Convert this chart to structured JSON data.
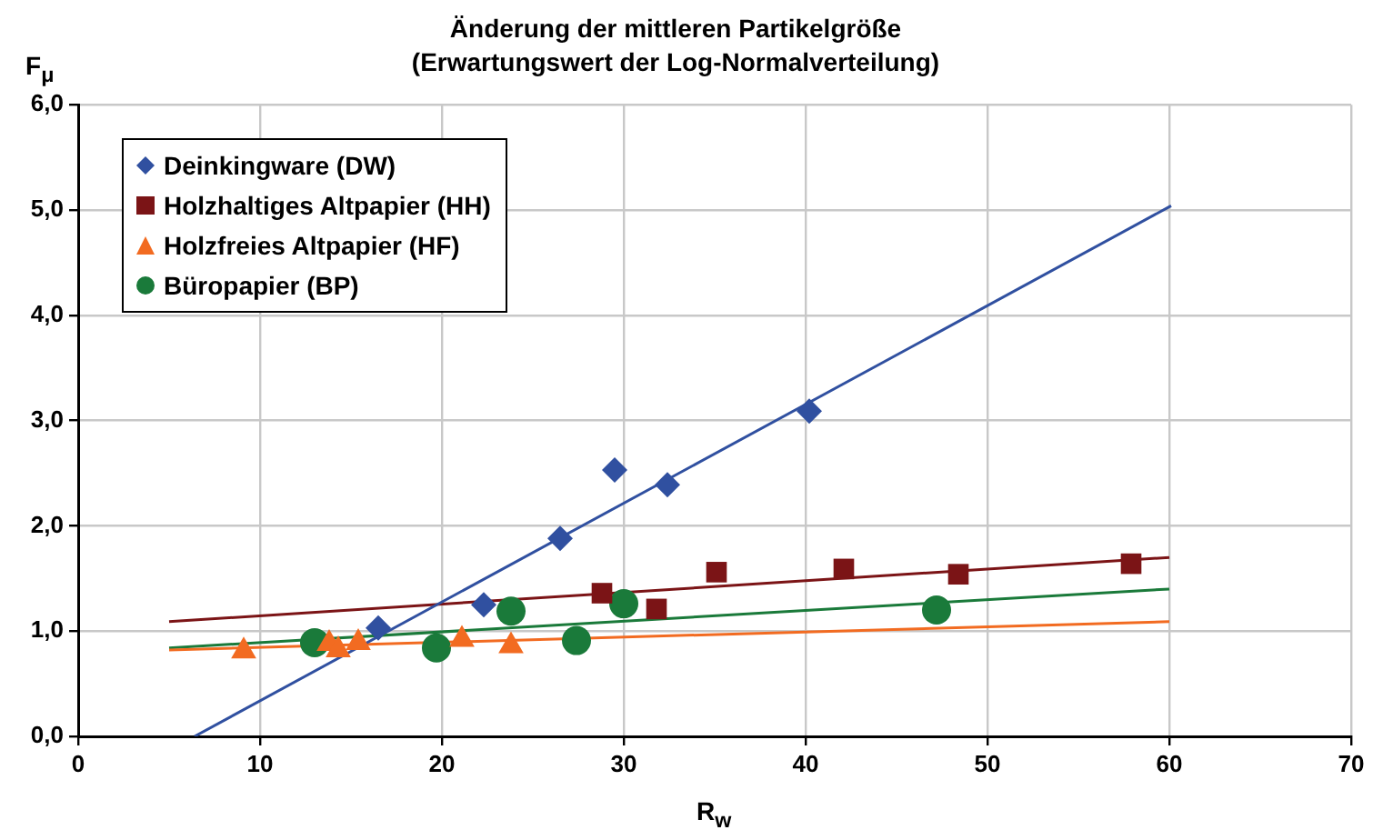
{
  "chart_data": {
    "type": "scatter",
    "title": "Änderung der mittleren Partikelgröße",
    "subtitle": "(Erwartungswert der Log-Normalverteilung)",
    "xlabel": "R$_{w}$",
    "ylabel": "F$_{μ}$",
    "xlim": [
      0,
      70
    ],
    "xticks": [
      0,
      10,
      20,
      30,
      40,
      50,
      60,
      70
    ],
    "ylim": [
      0,
      6
    ],
    "yticks": [
      {
        "value": 0,
        "label": "0,0"
      },
      {
        "value": 1,
        "label": "1,0"
      },
      {
        "value": 2,
        "label": "2,0"
      },
      {
        "value": 3,
        "label": "3,0"
      },
      {
        "value": 4,
        "label": "4,0"
      },
      {
        "value": 5,
        "label": "5,0"
      },
      {
        "value": 6,
        "label": "6,0"
      }
    ],
    "grid": true,
    "legend": "top left",
    "series": [
      {
        "name": "Deinkingware (DW)",
        "color": "#3050a0",
        "marker": "diamond",
        "x": [
          16.5,
          22.3,
          26.5,
          29.5,
          32.4,
          40.2
        ],
        "values": [
          1.03,
          1.25,
          1.88,
          2.53,
          2.39,
          3.09
        ]
      },
      {
        "name": "Holzhaltiges Altpapier (HH)",
        "color": "#7b1416",
        "marker": "square",
        "x": [
          28.8,
          31.8,
          35.1,
          42.1,
          48.4,
          57.9
        ],
        "values": [
          1.36,
          1.21,
          1.56,
          1.59,
          1.54,
          1.64
        ]
      },
      {
        "name": "Holzfreies Altpapier (HF)",
        "color": "#f26b21",
        "marker": "triangle",
        "x": [
          9.1,
          13.8,
          14.3,
          15.4,
          21.1,
          23.8
        ],
        "values": [
          0.81,
          0.88,
          0.82,
          0.89,
          0.92,
          0.86
        ]
      },
      {
        "name": "Büropapier (BP)",
        "color": "#1a7a3a",
        "marker": "circle",
        "x": [
          13.0,
          19.7,
          23.8,
          27.4,
          30.0,
          47.2
        ],
        "values": [
          0.89,
          0.84,
          1.19,
          0.91,
          1.26,
          1.2
        ]
      },
      {
        "type": "line",
        "color": "#3050a0",
        "marker": "none",
        "x": [
          6.4,
          60.1
        ],
        "values": [
          0,
          5.04
        ]
      },
      {
        "type": "line",
        "color": "#7b1416",
        "marker": "none",
        "x": [
          5,
          60
        ],
        "values": [
          1.09,
          1.7
        ]
      },
      {
        "type": "line",
        "color": "#f26b21",
        "marker": "none",
        "x": [
          5,
          60
        ],
        "values": [
          0.82,
          1.09
        ]
      },
      {
        "type": "line",
        "color": "#1a7a3a",
        "marker": "none",
        "x": [
          5,
          60
        ],
        "values": [
          0.84,
          1.4
        ]
      }
    ]
  }
}
